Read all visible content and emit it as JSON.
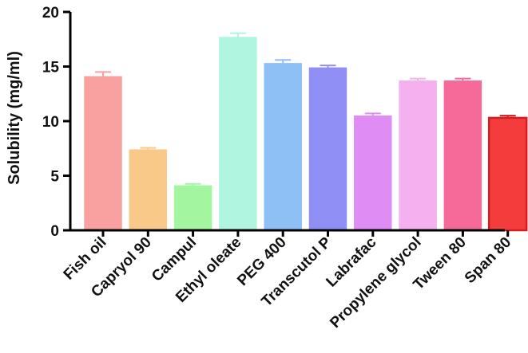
{
  "chart_data": {
    "type": "bar",
    "title": "",
    "xlabel": "",
    "ylabel": "Solubility (mg/ml)",
    "ylim": [
      0,
      20
    ],
    "yticks": [
      0,
      5,
      10,
      15,
      20
    ],
    "grid": false,
    "categories": [
      "Fish oil",
      "Capryol 90",
      "Campul",
      "Ethyl oleate",
      "PEG 400",
      "Transcutol P",
      "Labrafac",
      "Propylene glycol",
      "Tween 80",
      "Span 80"
    ],
    "values": [
      14.1,
      7.4,
      4.1,
      17.7,
      15.3,
      14.9,
      10.5,
      13.7,
      13.7,
      10.3
    ],
    "errors": [
      0.4,
      0.15,
      0.15,
      0.35,
      0.3,
      0.2,
      0.2,
      0.2,
      0.2,
      0.2
    ],
    "colors": [
      "#f9a0a0",
      "#f9c98a",
      "#a3f5a0",
      "#b0f5e0",
      "#8fc0f5",
      "#8f8ff5",
      "#df8cf5",
      "#f5b0f0",
      "#f56a98",
      "#f53c3c"
    ],
    "edge_colors": [
      "#f9a0a0",
      "#f9c98a",
      "#a3f5a0",
      "#b0f5e0",
      "#8fc0f5",
      "#8f8ff5",
      "#df8cf5",
      "#f5b0f0",
      "#f56a98",
      "#d21e1e"
    ]
  }
}
